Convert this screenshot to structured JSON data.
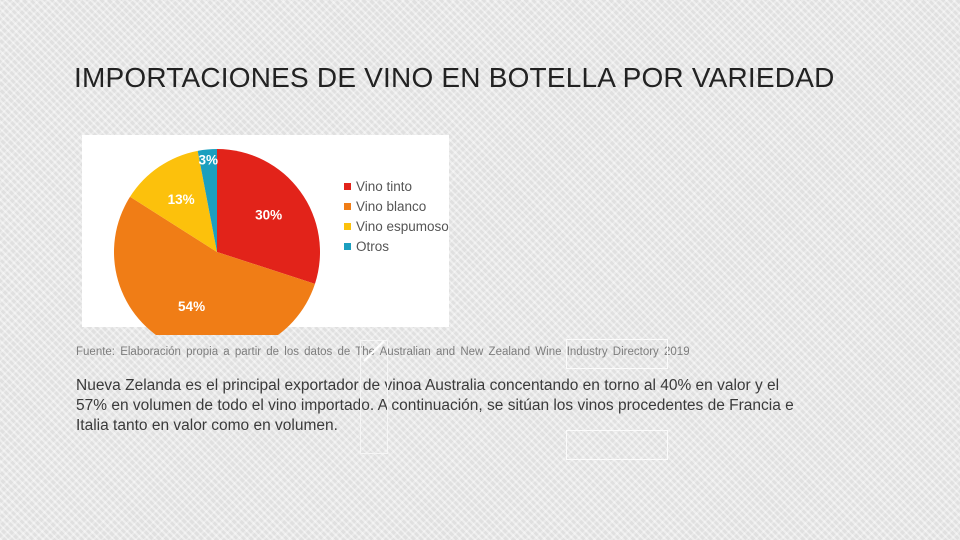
{
  "slide": {
    "title": "IMPORTACIONES DE VINO EN BOTELLA POR VARIEDAD",
    "source": "Fuente: Elaboración propia a partir de los datos de The Australian and New Zealand Wine Industry Directory 2019",
    "body": "Nueva Zelanda es el principal exportador de vinoa Australia concentando en torno al 40% en valor y el 57% en volumen de todo el vino importado. A continuación, se sitúan los vinos procedentes de Francia e Italia tanto en valor como en volumen."
  },
  "chart_data": {
    "type": "pie",
    "title": "",
    "legend_position": "right",
    "slices": [
      {
        "name": "Vino tinto",
        "value": 30,
        "label": "30%",
        "color": "#e2231a"
      },
      {
        "name": "Vino blanco",
        "value": 54,
        "label": "54%",
        "color": "#f07d16"
      },
      {
        "name": "Vino espumoso",
        "value": 13,
        "label": "13%",
        "color": "#fcc10c"
      },
      {
        "name": "Otros",
        "value": 3,
        "label": "3%",
        "color": "#1b9fbf"
      }
    ]
  }
}
